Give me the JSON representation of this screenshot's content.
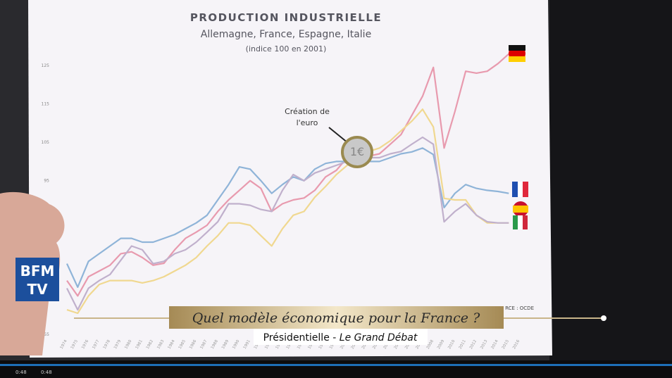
{
  "chart_data": {
    "type": "line",
    "title": "PRODUCTION INDUSTRIELLE",
    "subtitle": "Allemagne, France, Espagne, Italie",
    "note": "(indice 100 en 2001)",
    "annotation": [
      "Création de",
      "l'euro"
    ],
    "source": "RCE : OCDE",
    "categories": [
      "1974",
      "1975",
      "1976",
      "1977",
      "1978",
      "1979",
      "1980",
      "1981",
      "1982",
      "1983",
      "1984",
      "1985",
      "1986",
      "1987",
      "1988",
      "1989",
      "1990",
      "1991",
      "1992",
      "1993",
      "1994",
      "1995",
      "1996",
      "1997",
      "1998",
      "1999",
      "2000",
      "2001",
      "2002",
      "2003",
      "2004",
      "2005",
      "2006",
      "2007",
      "2008",
      "2009",
      "2010",
      "2011",
      "2012",
      "2013",
      "2014",
      "2015",
      "2016"
    ],
    "series": [
      {
        "color": "#e89aae",
        "values": [
          69,
          65,
          70,
          71.5,
          73,
          76,
          76.5,
          75,
          73,
          73.5,
          77,
          80,
          81.6,
          83.4,
          87,
          90,
          92.5,
          95,
          93,
          87,
          89,
          90,
          90.5,
          92.5,
          96,
          97.7,
          101,
          100,
          101.4,
          102,
          104.5,
          107,
          112,
          117,
          124.5,
          103.5,
          113,
          123.5,
          123,
          123.5,
          125.5,
          128,
          null
        ]
      },
      {
        "color": "#8fb4d8",
        "values": [
          73.4,
          67.3,
          74,
          76,
          78,
          80,
          80,
          79,
          79,
          80,
          81,
          82.5,
          84,
          86,
          90,
          94,
          98.6,
          98,
          95,
          91.7,
          94,
          96,
          95,
          98,
          99.5,
          100,
          100,
          101,
          100,
          100,
          101,
          102,
          102.5,
          103.5,
          101.8,
          88,
          91.7,
          94,
          93,
          92.5,
          92.2,
          91.7,
          null
        ]
      },
      {
        "color": "#f0d890",
        "values": [
          61.4,
          60.5,
          65,
          68,
          69,
          69,
          69,
          68.4,
          69,
          70,
          71.5,
          73,
          75,
          78,
          80.7,
          84,
          84,
          83.4,
          80.7,
          78,
          82.5,
          86,
          87,
          90.7,
          93.5,
          96.6,
          99,
          100,
          102.6,
          103.5,
          105.4,
          108,
          110.5,
          113.6,
          109,
          90.4,
          90,
          90,
          86,
          84,
          84,
          84,
          null
        ]
      },
      {
        "color": "#c0b0cc",
        "values": [
          67,
          61.4,
          67,
          69,
          70.6,
          74.3,
          78,
          77,
          73.4,
          74,
          76,
          77,
          79,
          81.6,
          84.3,
          89,
          89,
          88.6,
          87.5,
          87,
          92.5,
          96.6,
          95,
          97,
          98,
          99,
          100,
          100,
          101,
          101,
          102,
          102.6,
          104.5,
          106.3,
          104.5,
          84.3,
          87,
          89,
          86,
          84.3,
          84,
          84,
          null
        ]
      }
    ],
    "ylim": [
      55,
      130
    ],
    "yticks": [
      55,
      95,
      105,
      115,
      125
    ]
  },
  "overlay": {
    "logo": [
      "BFM",
      "TV"
    ],
    "banner": "Quel modèle économique pour la France ?",
    "show_plain": "Présidentielle - ",
    "show_italic": "Le Grand Débat",
    "time_current": "0:48",
    "time_total": "0:48"
  }
}
